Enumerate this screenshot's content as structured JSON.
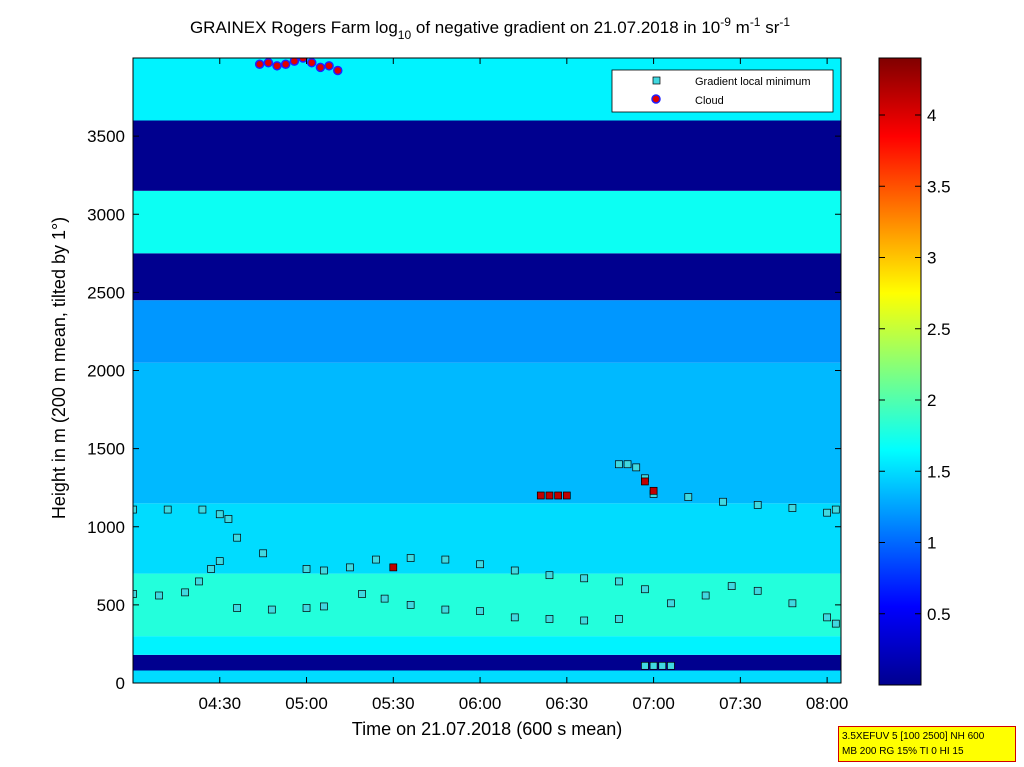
{
  "chart_data": {
    "type": "heatmap",
    "title_parts": {
      "a": "GRAINEX Rogers Farm log",
      "a_sub": "10",
      "b": " of negative gradient on 21.07.2018 in 10",
      "b_sup": "-9",
      "c": " m",
      "c_sup": "-1",
      "d": " sr",
      "d_sup": "-1"
    },
    "xlabel": "Time on 21.07.2018 (600 s mean)",
    "ylabel": "Height in m (200 m mean, tilted by 1°)",
    "x_range_hours": [
      4.0,
      8.08
    ],
    "y_range": [
      0,
      4000
    ],
    "x_ticks": [
      {
        "value": 4.5,
        "label": "04:30"
      },
      {
        "value": 5.0,
        "label": "05:00"
      },
      {
        "value": 5.5,
        "label": "05:30"
      },
      {
        "value": 6.0,
        "label": "06:00"
      },
      {
        "value": 6.5,
        "label": "06:30"
      },
      {
        "value": 7.0,
        "label": "07:00"
      },
      {
        "value": 7.5,
        "label": "07:30"
      },
      {
        "value": 8.0,
        "label": "08:00"
      }
    ],
    "y_ticks": [
      {
        "value": 0,
        "label": "0"
      },
      {
        "value": 500,
        "label": "500"
      },
      {
        "value": 1000,
        "label": "1000"
      },
      {
        "value": 1500,
        "label": "1500"
      },
      {
        "value": 2000,
        "label": "2000"
      },
      {
        "value": 2500,
        "label": "2500"
      },
      {
        "value": 3000,
        "label": "3000"
      },
      {
        "value": 3500,
        "label": "3500"
      }
    ],
    "colorbar": {
      "range": [
        0,
        4.4
      ],
      "colormap": "jet",
      "ticks": [
        {
          "value": 0.5,
          "label": "0.5"
        },
        {
          "value": 1.0,
          "label": "1"
        },
        {
          "value": 1.5,
          "label": "1.5"
        },
        {
          "value": 2.0,
          "label": "2"
        },
        {
          "value": 2.5,
          "label": "2.5"
        },
        {
          "value": 3.0,
          "label": "3"
        },
        {
          "value": 3.5,
          "label": "3.5"
        },
        {
          "value": 4.0,
          "label": "4"
        }
      ]
    },
    "legend": {
      "position": "top-right",
      "entries": [
        {
          "label": "Gradient local minimum",
          "marker": "square",
          "color": "#40d8e0"
        },
        {
          "label": "Cloud",
          "marker": "circle",
          "color": "#e00000",
          "edge": "#2020ff"
        }
      ]
    },
    "heatmap_bands": [
      {
        "from": 0,
        "to": 80,
        "value": 1.5
      },
      {
        "from": 80,
        "to": 180,
        "value": 0.0
      },
      {
        "from": 180,
        "to": 300,
        "value": 1.6
      },
      {
        "from": 300,
        "to": 700,
        "value": 1.8
      },
      {
        "from": 700,
        "to": 1150,
        "value": 1.5
      },
      {
        "from": 1150,
        "to": 2050,
        "value": 1.35
      },
      {
        "from": 2050,
        "to": 2450,
        "value": 1.2
      },
      {
        "from": 2450,
        "to": 2750,
        "value": 0.0
      },
      {
        "from": 2750,
        "to": 3150,
        "value": 1.7
      },
      {
        "from": 3150,
        "to": 3600,
        "value": 0.0
      },
      {
        "from": 3600,
        "to": 4000,
        "value": 1.6
      }
    ],
    "series": [
      {
        "name": "Gradient local minimum",
        "marker": "square",
        "color": "#40d8e0",
        "x": [
          4.0,
          4.2,
          4.4,
          4.5,
          4.55,
          4.6,
          4.75,
          5.0,
          5.1,
          5.25,
          5.4,
          5.6,
          5.8,
          6.0,
          6.2,
          6.4,
          6.6,
          6.8,
          6.95,
          7.1,
          7.3,
          7.45,
          7.6,
          7.8,
          8.0,
          8.05
        ],
        "y": [
          1110,
          1110,
          1110,
          1080,
          1050,
          930,
          830,
          730,
          720,
          740,
          790,
          800,
          790,
          760,
          720,
          690,
          670,
          650,
          600,
          510,
          560,
          620,
          590,
          510,
          420,
          380
        ]
      },
      {
        "name": "Gradient local minimum",
        "marker": "square",
        "color": "#40d8e0",
        "x": [
          4.0,
          4.15,
          4.3,
          4.38,
          4.45,
          4.5,
          4.6,
          4.8,
          5.0,
          5.1
        ],
        "y": [
          570,
          560,
          580,
          650,
          730,
          780,
          480,
          470,
          480,
          490
        ]
      },
      {
        "name": "Gradient local minimum",
        "marker": "square",
        "color": "#40d8e0",
        "x": [
          5.32,
          5.45,
          5.6,
          5.8,
          6.0,
          6.2,
          6.4,
          6.6,
          6.8
        ],
        "y": [
          570,
          540,
          500,
          470,
          460,
          420,
          410,
          400,
          410
        ]
      },
      {
        "name": "Gradient local minimum",
        "marker": "square",
        "color": "#40d8e0",
        "x": [
          6.8,
          6.85,
          6.9,
          6.95,
          7.0,
          7.2,
          7.4,
          7.6,
          7.8,
          8.0,
          8.05
        ],
        "y": [
          1400,
          1400,
          1380,
          1310,
          1210,
          1190,
          1160,
          1140,
          1120,
          1090,
          1110
        ]
      },
      {
        "name": "Gradient local minimum",
        "marker": "square",
        "color": "#40d8e0",
        "x": [
          6.95,
          7.0,
          7.05,
          7.1
        ],
        "y": [
          110,
          110,
          110,
          110
        ]
      },
      {
        "name": "Cloud",
        "marker": "circle",
        "color": "#e00000",
        "x": [
          4.73,
          4.78,
          4.83,
          4.88,
          4.93,
          4.98,
          5.03,
          5.08,
          5.13,
          5.18
        ],
        "y": [
          3960,
          3970,
          3950,
          3960,
          3980,
          4000,
          3970,
          3940,
          3950,
          3920
        ]
      }
    ],
    "highlight_points": [
      {
        "x": 6.35,
        "y": 1200
      },
      {
        "x": 6.4,
        "y": 1200
      },
      {
        "x": 6.45,
        "y": 1200
      },
      {
        "x": 6.5,
        "y": 1200
      },
      {
        "x": 5.5,
        "y": 740
      },
      {
        "x": 6.95,
        "y": 1290
      },
      {
        "x": 7.0,
        "y": 1230
      }
    ]
  },
  "footnote": {
    "line1": "3.5XEFUV 5 [100 2500] NH 600",
    "line2": "MB 200 RG 15% TI 0 HI 15"
  }
}
